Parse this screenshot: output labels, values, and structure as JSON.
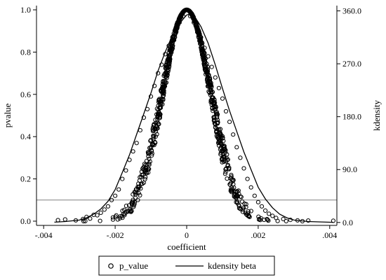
{
  "chart_data": {
    "type": "scatter",
    "xlabel": "coefficient",
    "ylabel": "pvalue",
    "y2label": "kdensity",
    "xlim": [
      -0.0042,
      0.0042
    ],
    "ylim": [
      -0.02,
      1.02
    ],
    "y2lim": [
      -5.0,
      369.0
    ],
    "x_ticks": [
      -0.004,
      -0.002,
      0,
      0.002,
      0.004
    ],
    "x_tick_labels": [
      "-.004",
      "-.002",
      "0",
      ".002",
      ".004"
    ],
    "y_ticks": [
      0,
      0.2,
      0.4,
      0.6,
      0.8,
      1.0
    ],
    "y_tick_labels": [
      "0.0",
      "0.2",
      "0.4",
      "0.6",
      "0.8",
      "1.0"
    ],
    "y2_ticks": [
      0,
      90,
      180,
      270,
      360
    ],
    "y2_tick_labels": [
      "0.0",
      "90.0",
      "180.0",
      "270.0",
      "360.0"
    ],
    "reference_line_y": 0.1,
    "legend_position": "bottom",
    "grid": false,
    "series": [
      {
        "name": "p_value",
        "kind": "scatter",
        "marker": "hollow-circle",
        "color": "#000000",
        "point_count": 1000,
        "points": [
          [
            -0.0036,
            0.005
          ],
          [
            -0.0034,
            0.008
          ],
          [
            -0.0031,
            0.004
          ],
          [
            -0.0029,
            0.01
          ],
          [
            -0.0028,
            0.02
          ],
          [
            -0.0027,
            0.012
          ],
          [
            -0.0026,
            0.03
          ],
          [
            -0.0025,
            0.028
          ],
          [
            -0.0024,
            0.04
          ],
          [
            -0.0023,
            0.055
          ],
          [
            -0.0022,
            0.07
          ],
          [
            -0.0021,
            0.1
          ],
          [
            -0.002,
            0.12
          ],
          [
            -0.0019,
            0.15
          ],
          [
            -0.0018,
            0.2
          ],
          [
            -0.0017,
            0.24
          ],
          [
            -0.0016,
            0.29
          ],
          [
            -0.0015,
            0.33
          ],
          [
            -0.0014,
            0.37
          ],
          [
            -0.0013,
            0.43
          ],
          [
            -0.0012,
            0.49
          ],
          [
            -0.0011,
            0.53
          ],
          [
            -0.001,
            0.59
          ],
          [
            -0.0009,
            0.64
          ],
          [
            -0.0008,
            0.7
          ],
          [
            -0.0007,
            0.74
          ],
          [
            -0.0006,
            0.79
          ],
          [
            -0.0005,
            0.83
          ],
          [
            -0.0004,
            0.87
          ],
          [
            -0.0003,
            0.9
          ],
          [
            -0.0002,
            0.94
          ],
          [
            -0.0001,
            0.97
          ],
          [
            0.0,
            1.0
          ],
          [
            0.0001,
            0.97
          ],
          [
            0.0002,
            0.94
          ],
          [
            0.0003,
            0.9
          ],
          [
            0.0004,
            0.87
          ],
          [
            0.0005,
            0.82
          ],
          [
            0.0006,
            0.78
          ],
          [
            0.0007,
            0.73
          ],
          [
            0.0008,
            0.68
          ],
          [
            0.0009,
            0.63
          ],
          [
            0.001,
            0.58
          ],
          [
            0.0011,
            0.52
          ],
          [
            0.0012,
            0.47
          ],
          [
            0.0013,
            0.41
          ],
          [
            0.0014,
            0.35
          ],
          [
            0.0015,
            0.3
          ],
          [
            0.0016,
            0.25
          ],
          [
            0.0017,
            0.2
          ],
          [
            0.0018,
            0.16
          ],
          [
            0.0019,
            0.12
          ],
          [
            0.002,
            0.09
          ],
          [
            0.0021,
            0.07
          ],
          [
            0.0022,
            0.05
          ],
          [
            0.0023,
            0.035
          ],
          [
            0.0024,
            0.025
          ],
          [
            0.0025,
            0.015
          ],
          [
            0.0027,
            0.01
          ],
          [
            0.0029,
            0.006
          ],
          [
            0.0031,
            0.004
          ],
          [
            0.0034,
            0.003
          ],
          [
            0.0041,
            0.002
          ]
        ]
      },
      {
        "name": "kdensity beta",
        "kind": "line",
        "color": "#000000",
        "axis": "right",
        "x": [
          -0.0037,
          -0.0034,
          -0.003,
          -0.0028,
          -0.0026,
          -0.0024,
          -0.0022,
          -0.002,
          -0.0018,
          -0.0016,
          -0.0014,
          -0.0012,
          -0.001,
          -0.0008,
          -0.0006,
          -0.0004,
          -0.0003,
          -0.0002,
          -0.0001,
          0.0,
          0.0001,
          0.0002,
          0.0003,
          0.0004,
          0.0006,
          0.0008,
          0.001,
          0.0012,
          0.0014,
          0.0016,
          0.0018,
          0.002,
          0.0022,
          0.0024,
          0.0026,
          0.0028,
          0.003,
          0.0034,
          0.0041
        ],
        "y": [
          0.5,
          1.5,
          4,
          8,
          14,
          23,
          36,
          56,
          85,
          115,
          150,
          185,
          220,
          258,
          290,
          318,
          330,
          338,
          346,
          353,
          355,
          350,
          343,
          333,
          305,
          268,
          228,
          190,
          155,
          120,
          90,
          60,
          40,
          25,
          14,
          8,
          4,
          1.5,
          0.3
        ]
      }
    ]
  }
}
